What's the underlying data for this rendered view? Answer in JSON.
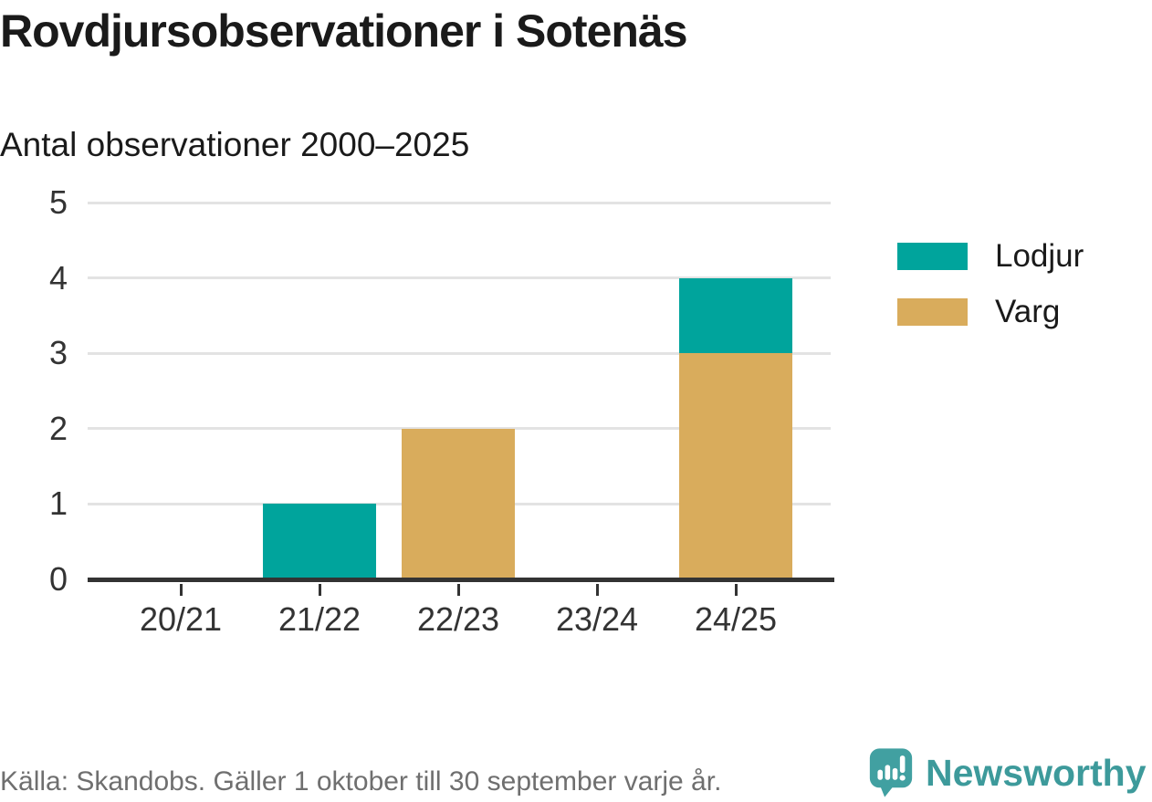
{
  "chart_data": {
    "type": "bar",
    "stacked": true,
    "title": "Rovdjursobservationer i Sotenäs",
    "subtitle": "Antal observationer 2000–2025",
    "categories": [
      "20/21",
      "21/22",
      "22/23",
      "23/24",
      "24/25"
    ],
    "series": [
      {
        "name": "Lodjur",
        "color": "#00a49c",
        "values": [
          0,
          1,
          0,
          0,
          1
        ]
      },
      {
        "name": "Varg",
        "color": "#d9ac5c",
        "values": [
          0,
          0,
          2,
          0,
          3
        ]
      }
    ],
    "totals": [
      0,
      1,
      2,
      0,
      4
    ],
    "xlabel": "",
    "ylabel": "",
    "ylim": [
      0,
      5
    ],
    "yticks": [
      0,
      1,
      2,
      3,
      4,
      5
    ],
    "grid": "horizontal",
    "legend_position": "right"
  },
  "footer": {
    "source": "Källa: Skandobs. Gäller 1 oktober till 30 september varje år.",
    "brand": "Newsworthy",
    "brand_color": "#3d9a9b",
    "logo_icon": "newsworthy-speech-bubble-bar-chart-icon",
    "logo_color": "#41a0a1"
  },
  "colors": {
    "title_text": "#1a1a1a",
    "axis_text": "#333333",
    "gridline": "#e3e3e3",
    "axis_line": "#333333",
    "source_text": "#6f6f6f"
  }
}
